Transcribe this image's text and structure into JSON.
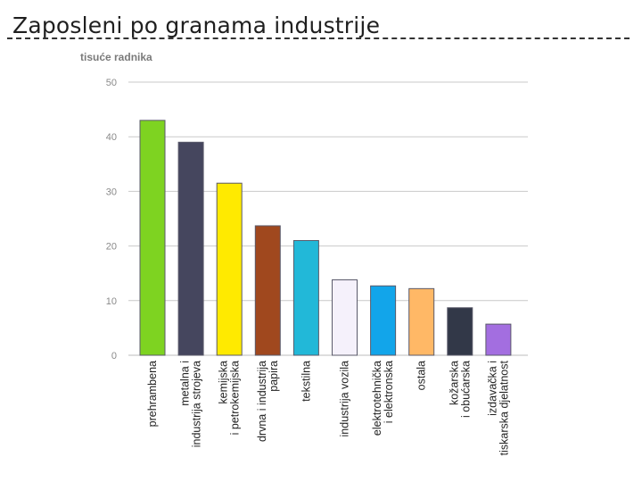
{
  "slide": {
    "title": "Zaposleni po granama industrije"
  },
  "chart_data": {
    "type": "bar",
    "ylabel": "tisuće radnika",
    "ylim": [
      0,
      50
    ],
    "yticks": [
      "0",
      "10",
      "20",
      "30",
      "40",
      "50"
    ],
    "grid": true,
    "categories": [
      [
        "prehrambena"
      ],
      [
        "metalna i",
        "industrija strojeva"
      ],
      [
        "kemijska",
        "i petrokemijska"
      ],
      [
        "drvna i industrija",
        "papira"
      ],
      [
        "tekstilna"
      ],
      [
        "industrija vozila"
      ],
      [
        "elektrotehnička",
        "i elektronska"
      ],
      [
        "ostala"
      ],
      [
        "kožarska",
        "i obućarska"
      ],
      [
        "izdavačka i",
        "tiskarska djelatnost"
      ]
    ],
    "values": [
      43,
      39,
      31.5,
      23.7,
      21,
      13.8,
      12.7,
      12.2,
      8.7,
      5.7
    ],
    "colors": [
      "#7ed321",
      "#45465e",
      "#ffea00",
      "#a0481e",
      "#22b8d8",
      "#f5f1fb",
      "#12a5ea",
      "#ffb866",
      "#323848",
      "#a36ee0"
    ]
  }
}
